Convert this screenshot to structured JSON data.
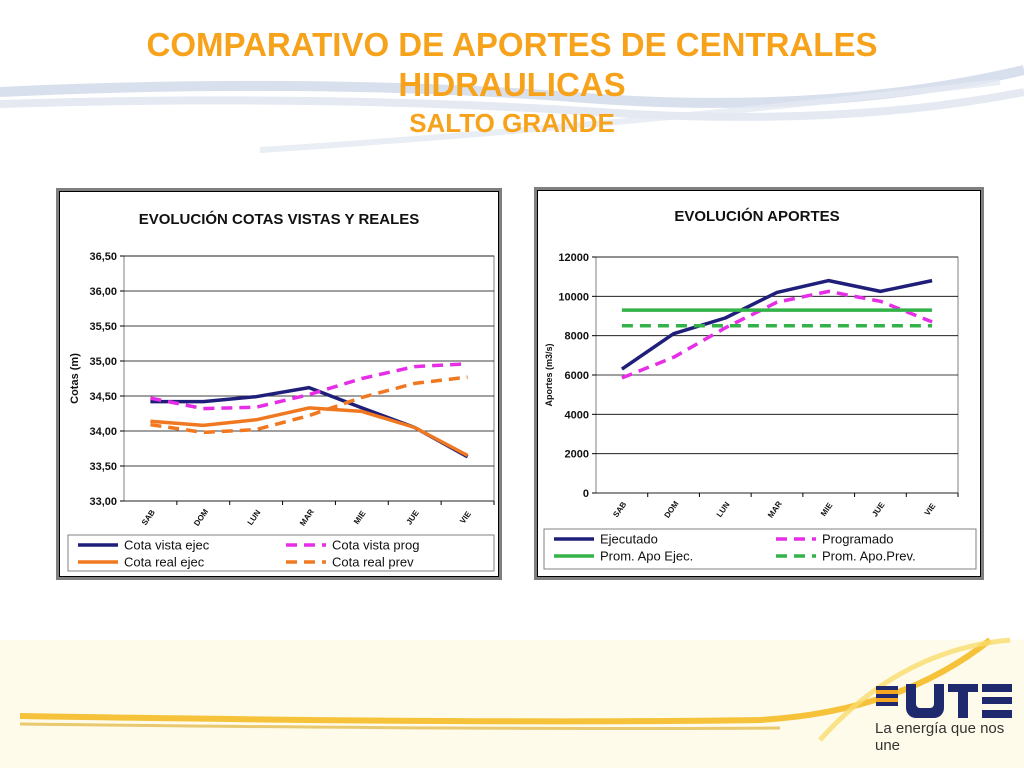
{
  "slide": {
    "title_line1": "COMPARATIVO DE APORTES DE CENTRALES",
    "title_line2": "HIDRAULICAS",
    "subtitle": "SALTO GRANDE",
    "title_color": "#f7a21b"
  },
  "logo": {
    "brand": "UTE",
    "tagline": "La energía que nos une"
  },
  "chart_data": [
    {
      "type": "line",
      "title": "EVOLUCIÓN  COTAS VISTAS Y REALES",
      "xlabel": "",
      "ylabel": "Cotas (m)",
      "categories": [
        "SAB",
        "DOM",
        "LUN",
        "MAR",
        "MIE",
        "JUE",
        "VIE"
      ],
      "ylim": [
        33.0,
        36.5
      ],
      "yticks": [
        "33,00",
        "33,50",
        "34,00",
        "34,50",
        "35,00",
        "35,50",
        "36,00",
        "36,50"
      ],
      "grid": true,
      "legend_position": "bottom",
      "series": [
        {
          "name": "Cota vista ejec",
          "color": "#1f1f7a",
          "dash": false,
          "values": [
            34.42,
            34.42,
            34.49,
            34.62,
            34.33,
            34.05,
            33.63
          ]
        },
        {
          "name": "Cota vista prog",
          "color": "#e62ee6",
          "dash": true,
          "values": [
            34.47,
            34.32,
            34.34,
            34.52,
            34.75,
            34.92,
            34.96
          ]
        },
        {
          "name": "Cota real ejec",
          "color": "#f07820",
          "dash": false,
          "values": [
            34.14,
            34.08,
            34.16,
            34.33,
            34.28,
            34.05,
            33.65
          ]
        },
        {
          "name": "Cota real prev",
          "color": "#f07820",
          "dash": true,
          "values": [
            34.09,
            33.98,
            34.02,
            34.22,
            34.48,
            34.68,
            34.77
          ]
        }
      ]
    },
    {
      "type": "line",
      "title": "EVOLUCIÓN  APORTES",
      "xlabel": "",
      "ylabel": "Aportes (m3/s)",
      "categories": [
        "SAB",
        "DOM",
        "LUN",
        "MAR",
        "MIE",
        "JUE",
        "VIE"
      ],
      "ylim": [
        0,
        12000
      ],
      "yticks": [
        "0",
        "2000",
        "4000",
        "6000",
        "8000",
        "10000",
        "12000"
      ],
      "grid": true,
      "legend_position": "bottom",
      "series": [
        {
          "name": "Ejecutado",
          "color": "#1f1f7a",
          "dash": false,
          "values": [
            6300,
            8100,
            8900,
            10200,
            10800,
            10250,
            10800
          ]
        },
        {
          "name": "Programado",
          "color": "#e62ee6",
          "dash": true,
          "values": [
            5850,
            6900,
            8400,
            9700,
            10250,
            9750,
            8700
          ]
        },
        {
          "name": "Prom. Apo Ejec.",
          "color": "#33b24a",
          "dash": false,
          "values": [
            9300,
            9300,
            9300,
            9300,
            9300,
            9300,
            9300
          ]
        },
        {
          "name": "Prom. Apo.Prev.",
          "color": "#33b24a",
          "dash": true,
          "values": [
            8500,
            8500,
            8500,
            8500,
            8500,
            8500,
            8500
          ]
        }
      ]
    }
  ]
}
